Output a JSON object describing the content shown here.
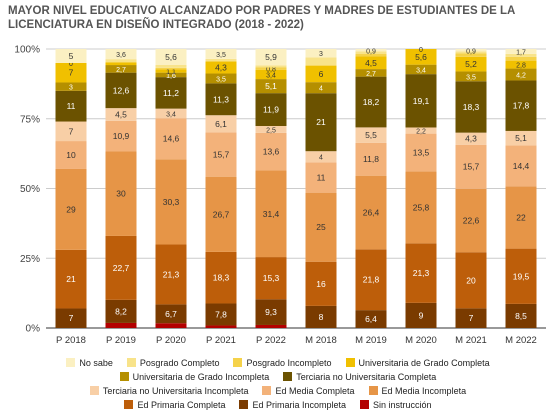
{
  "chart_data": {
    "type": "bar",
    "stacked": true,
    "percent_stacked": true,
    "title": "MAYOR NIVEL EDUCATIVO ALCANZADO POR PADRES Y MADRES DE ESTUDIANTES DE LA LICENCIATURA EN DISEÑO INTEGRADO (2018 - 2022)",
    "categories": [
      "P 2018",
      "P 2019",
      "P 2020",
      "P 2021",
      "P 2022",
      "M 2018",
      "M 2019",
      "M 2020",
      "M 2021",
      "M 2022"
    ],
    "ylim": [
      0,
      100
    ],
    "yticks": [
      "0%",
      "25%",
      "50%",
      "75%",
      "100%"
    ],
    "grid": true,
    "legend_position": "bottom",
    "series": [
      {
        "name": "Sin instrucción",
        "color": "#b30000",
        "values": [
          0,
          1.8,
          1.7,
          0.9,
          1.1,
          0,
          0,
          0,
          0,
          0
        ],
        "labels": [
          "",
          "",
          "",
          "",
          "",
          "",
          "",
          "",
          "",
          ""
        ]
      },
      {
        "name": "Ed Primaria Incompleta",
        "color": "#7a3b00",
        "values": [
          7,
          8.2,
          6.7,
          7.8,
          9.3,
          8,
          6.4,
          9,
          7,
          8.5
        ],
        "labels": [
          "7",
          "8,2",
          "6,7",
          "7,8",
          "9,3",
          "8",
          "6,4",
          "9",
          "7",
          "8,5"
        ]
      },
      {
        "name": "Ed Primaria Completa",
        "color": "#bd5e0a",
        "values": [
          21,
          22.7,
          21.3,
          18.3,
          15.3,
          16,
          21.8,
          21.3,
          20,
          19.5
        ],
        "labels": [
          "21",
          "22,7",
          "21,3",
          "18,3",
          "15,3",
          "16",
          "21,8",
          "21,3",
          "20",
          "19,5"
        ]
      },
      {
        "name": "Ed Media Incompleta",
        "color": "#e69547",
        "values": [
          29,
          30,
          30.3,
          26.7,
          31.4,
          25,
          26.4,
          25.8,
          22.6,
          22
        ],
        "labels": [
          "29",
          "30",
          "30,3",
          "26,7",
          "31,4",
          "25",
          "26,4",
          "25,8",
          "22,6",
          "22"
        ]
      },
      {
        "name": "Ed Media Completa",
        "color": "#f3b27a",
        "values": [
          10,
          10.9,
          14.6,
          15.7,
          13.6,
          11,
          11.8,
          13.5,
          15.7,
          14.4
        ],
        "labels": [
          "10",
          "10,9",
          "14,6",
          "15,7",
          "13,6",
          "11",
          "11,8",
          "13,5",
          "15,7",
          "14,4"
        ]
      },
      {
        "name": "Terciaria no Universitaria Incompleta",
        "color": "#f8cfa6",
        "values": [
          7,
          4.5,
          3.4,
          6.1,
          2.5,
          4,
          5.5,
          2.2,
          4.3,
          5.1
        ],
        "labels": [
          "7",
          "4,5",
          "3,4",
          "6,1",
          "2,5",
          "4",
          "5,5",
          "2,2",
          "4,3",
          "5,1"
        ]
      },
      {
        "name": "Terciaria no Universitaria Completa",
        "color": "#6b5200",
        "values": [
          11,
          12.6,
          11.2,
          11.3,
          11.9,
          21,
          18.2,
          19.1,
          18.3,
          17.8
        ],
        "labels": [
          "11",
          "12,6",
          "11,2",
          "11,3",
          "11,9",
          "21",
          "18,2",
          "19,1",
          "18,3",
          "17,8"
        ]
      },
      {
        "name": "Universitaria de Grado Incompleta",
        "color": "#b58f00",
        "values": [
          3,
          2.7,
          1.6,
          3.5,
          5.1,
          4,
          2.7,
          3.4,
          3.5,
          4.2
        ],
        "labels": [
          "3",
          "2,7",
          "1,6",
          "3,5",
          "5,1",
          "4",
          "2,7",
          "3,4",
          "3,5",
          "4,2"
        ]
      },
      {
        "name": "Universitaria de Grado Completa",
        "color": "#f0c000",
        "values": [
          7,
          1,
          1.1,
          4.3,
          3.4,
          6,
          4.5,
          5.6,
          5.2,
          2.8
        ],
        "labels": [
          "7",
          "",
          "1,1",
          "4,3",
          "3,4",
          "6",
          "4,5",
          "5,6",
          "5,2",
          "2,8"
        ]
      },
      {
        "name": "Posgrado Incompleto",
        "color": "#f5d24a",
        "values": [
          0,
          0,
          0.6,
          0,
          0.8,
          0,
          0.9,
          0,
          1.3,
          1.3
        ],
        "labels": [
          "0",
          "",
          "",
          "",
          "0,8",
          "",
          "",
          "",
          "",
          ""
        ]
      },
      {
        "name": "Posgrado Completo",
        "color": "#f8e38a",
        "values": [
          0,
          1.1,
          1.1,
          0.9,
          0.8,
          3,
          0.9,
          0,
          0.6,
          1.1
        ],
        "labels": [
          "",
          "",
          "",
          "",
          "",
          "",
          "",
          "",
          "",
          ""
        ]
      },
      {
        "name": "No sabe",
        "color": "#fbf0c2",
        "values": [
          5,
          3.6,
          5.6,
          3.5,
          5.9,
          3,
          0.9,
          0,
          0.9,
          1.7
        ],
        "labels": [
          "5",
          "3,6",
          "5,6",
          "3,5",
          "5,9",
          "3",
          "0,9",
          "0",
          "0,9",
          "1,7"
        ]
      }
    ]
  }
}
